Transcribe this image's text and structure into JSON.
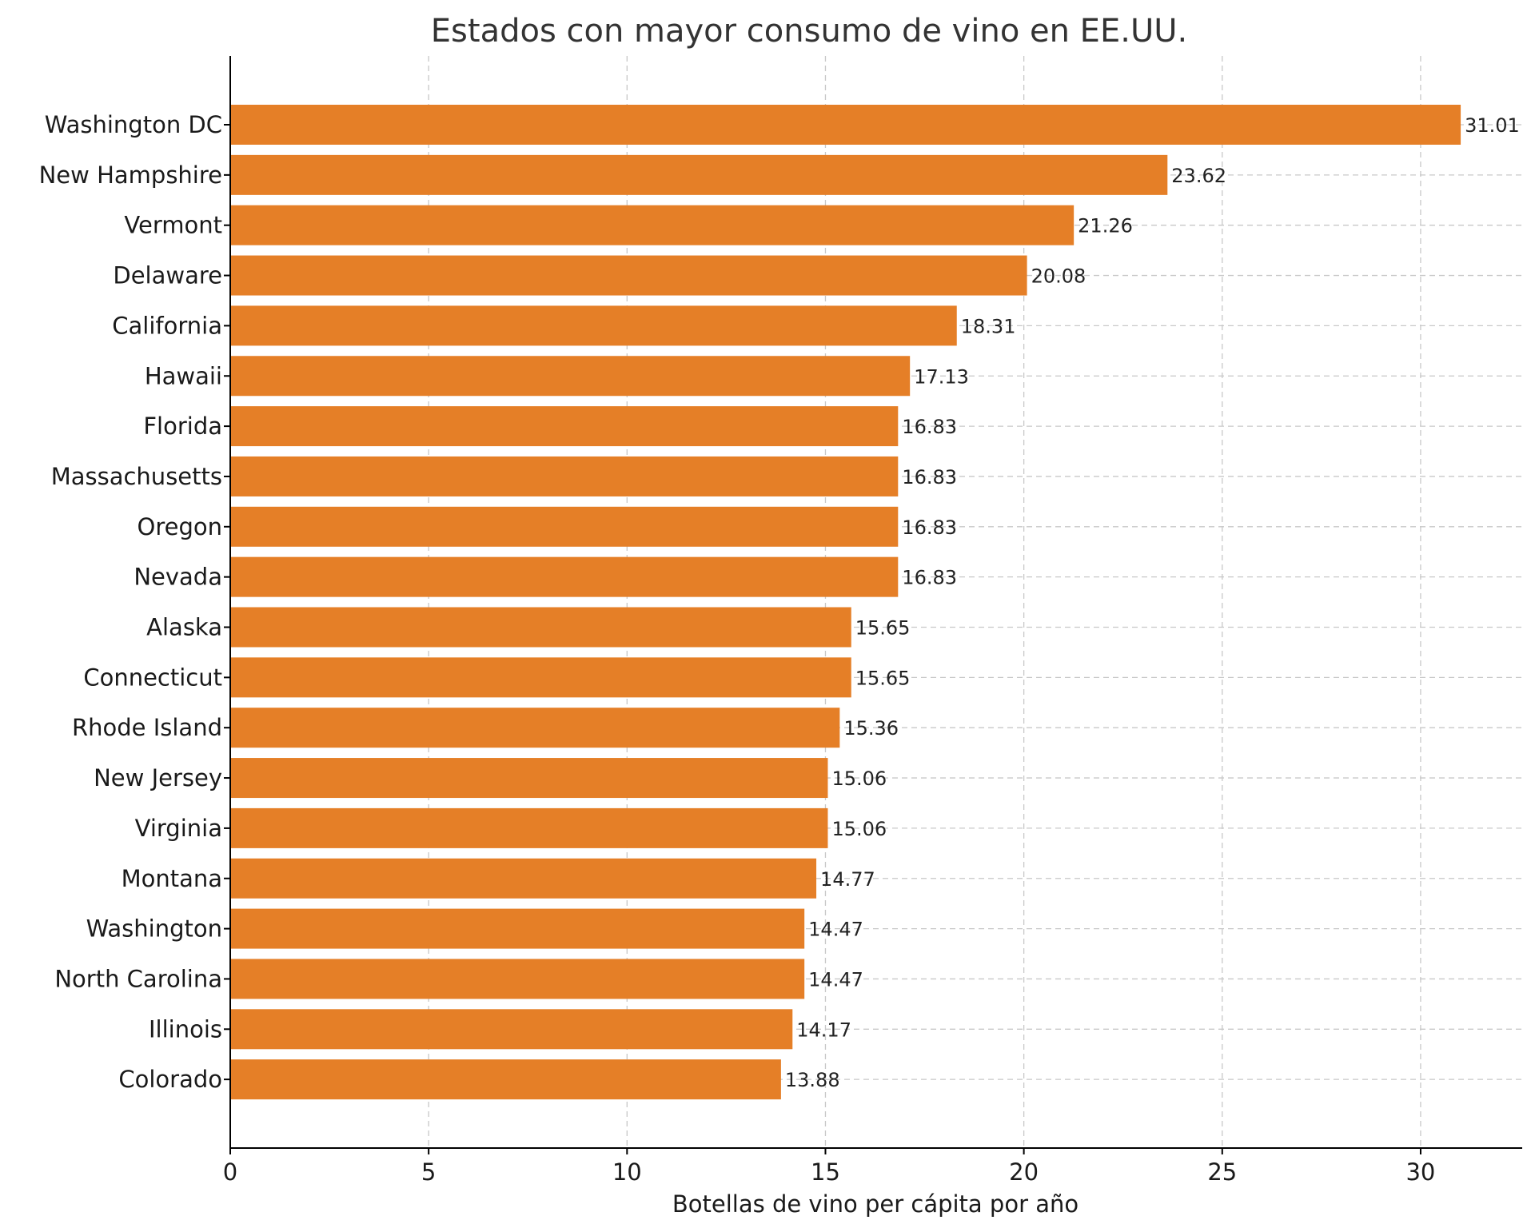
{
  "chart_data": {
    "type": "bar",
    "orientation": "horizontal",
    "title": "Estados con mayor consumo de vino en EE.UU.",
    "xlabel": "Botellas de vino per cápita por año",
    "ylabel": "",
    "xlim": [
      0,
      32.56
    ],
    "xticks": [
      0,
      5,
      10,
      15,
      20,
      25,
      30
    ],
    "grid": true,
    "bar_color": "#e57f27",
    "categories": [
      "Washington DC",
      "New Hampshire",
      "Vermont",
      "Delaware",
      "California",
      "Hawaii",
      "Florida",
      "Massachusetts",
      "Oregon",
      "Nevada",
      "Alaska",
      "Connecticut",
      "Rhode Island",
      "New Jersey",
      "Virginia",
      "Montana",
      "Washington",
      "North Carolina",
      "Illinois",
      "Colorado"
    ],
    "values": [
      31.01,
      23.62,
      21.26,
      20.08,
      18.31,
      17.13,
      16.83,
      16.83,
      16.83,
      16.83,
      15.65,
      15.65,
      15.36,
      15.06,
      15.06,
      14.77,
      14.47,
      14.47,
      14.17,
      13.88
    ],
    "value_labels": [
      "31.01",
      "23.62",
      "21.26",
      "20.08",
      "18.31",
      "17.13",
      "16.83",
      "16.83",
      "16.83",
      "16.83",
      "15.65",
      "15.65",
      "15.36",
      "15.06",
      "15.06",
      "14.77",
      "14.47",
      "14.47",
      "14.17",
      "13.88"
    ]
  }
}
